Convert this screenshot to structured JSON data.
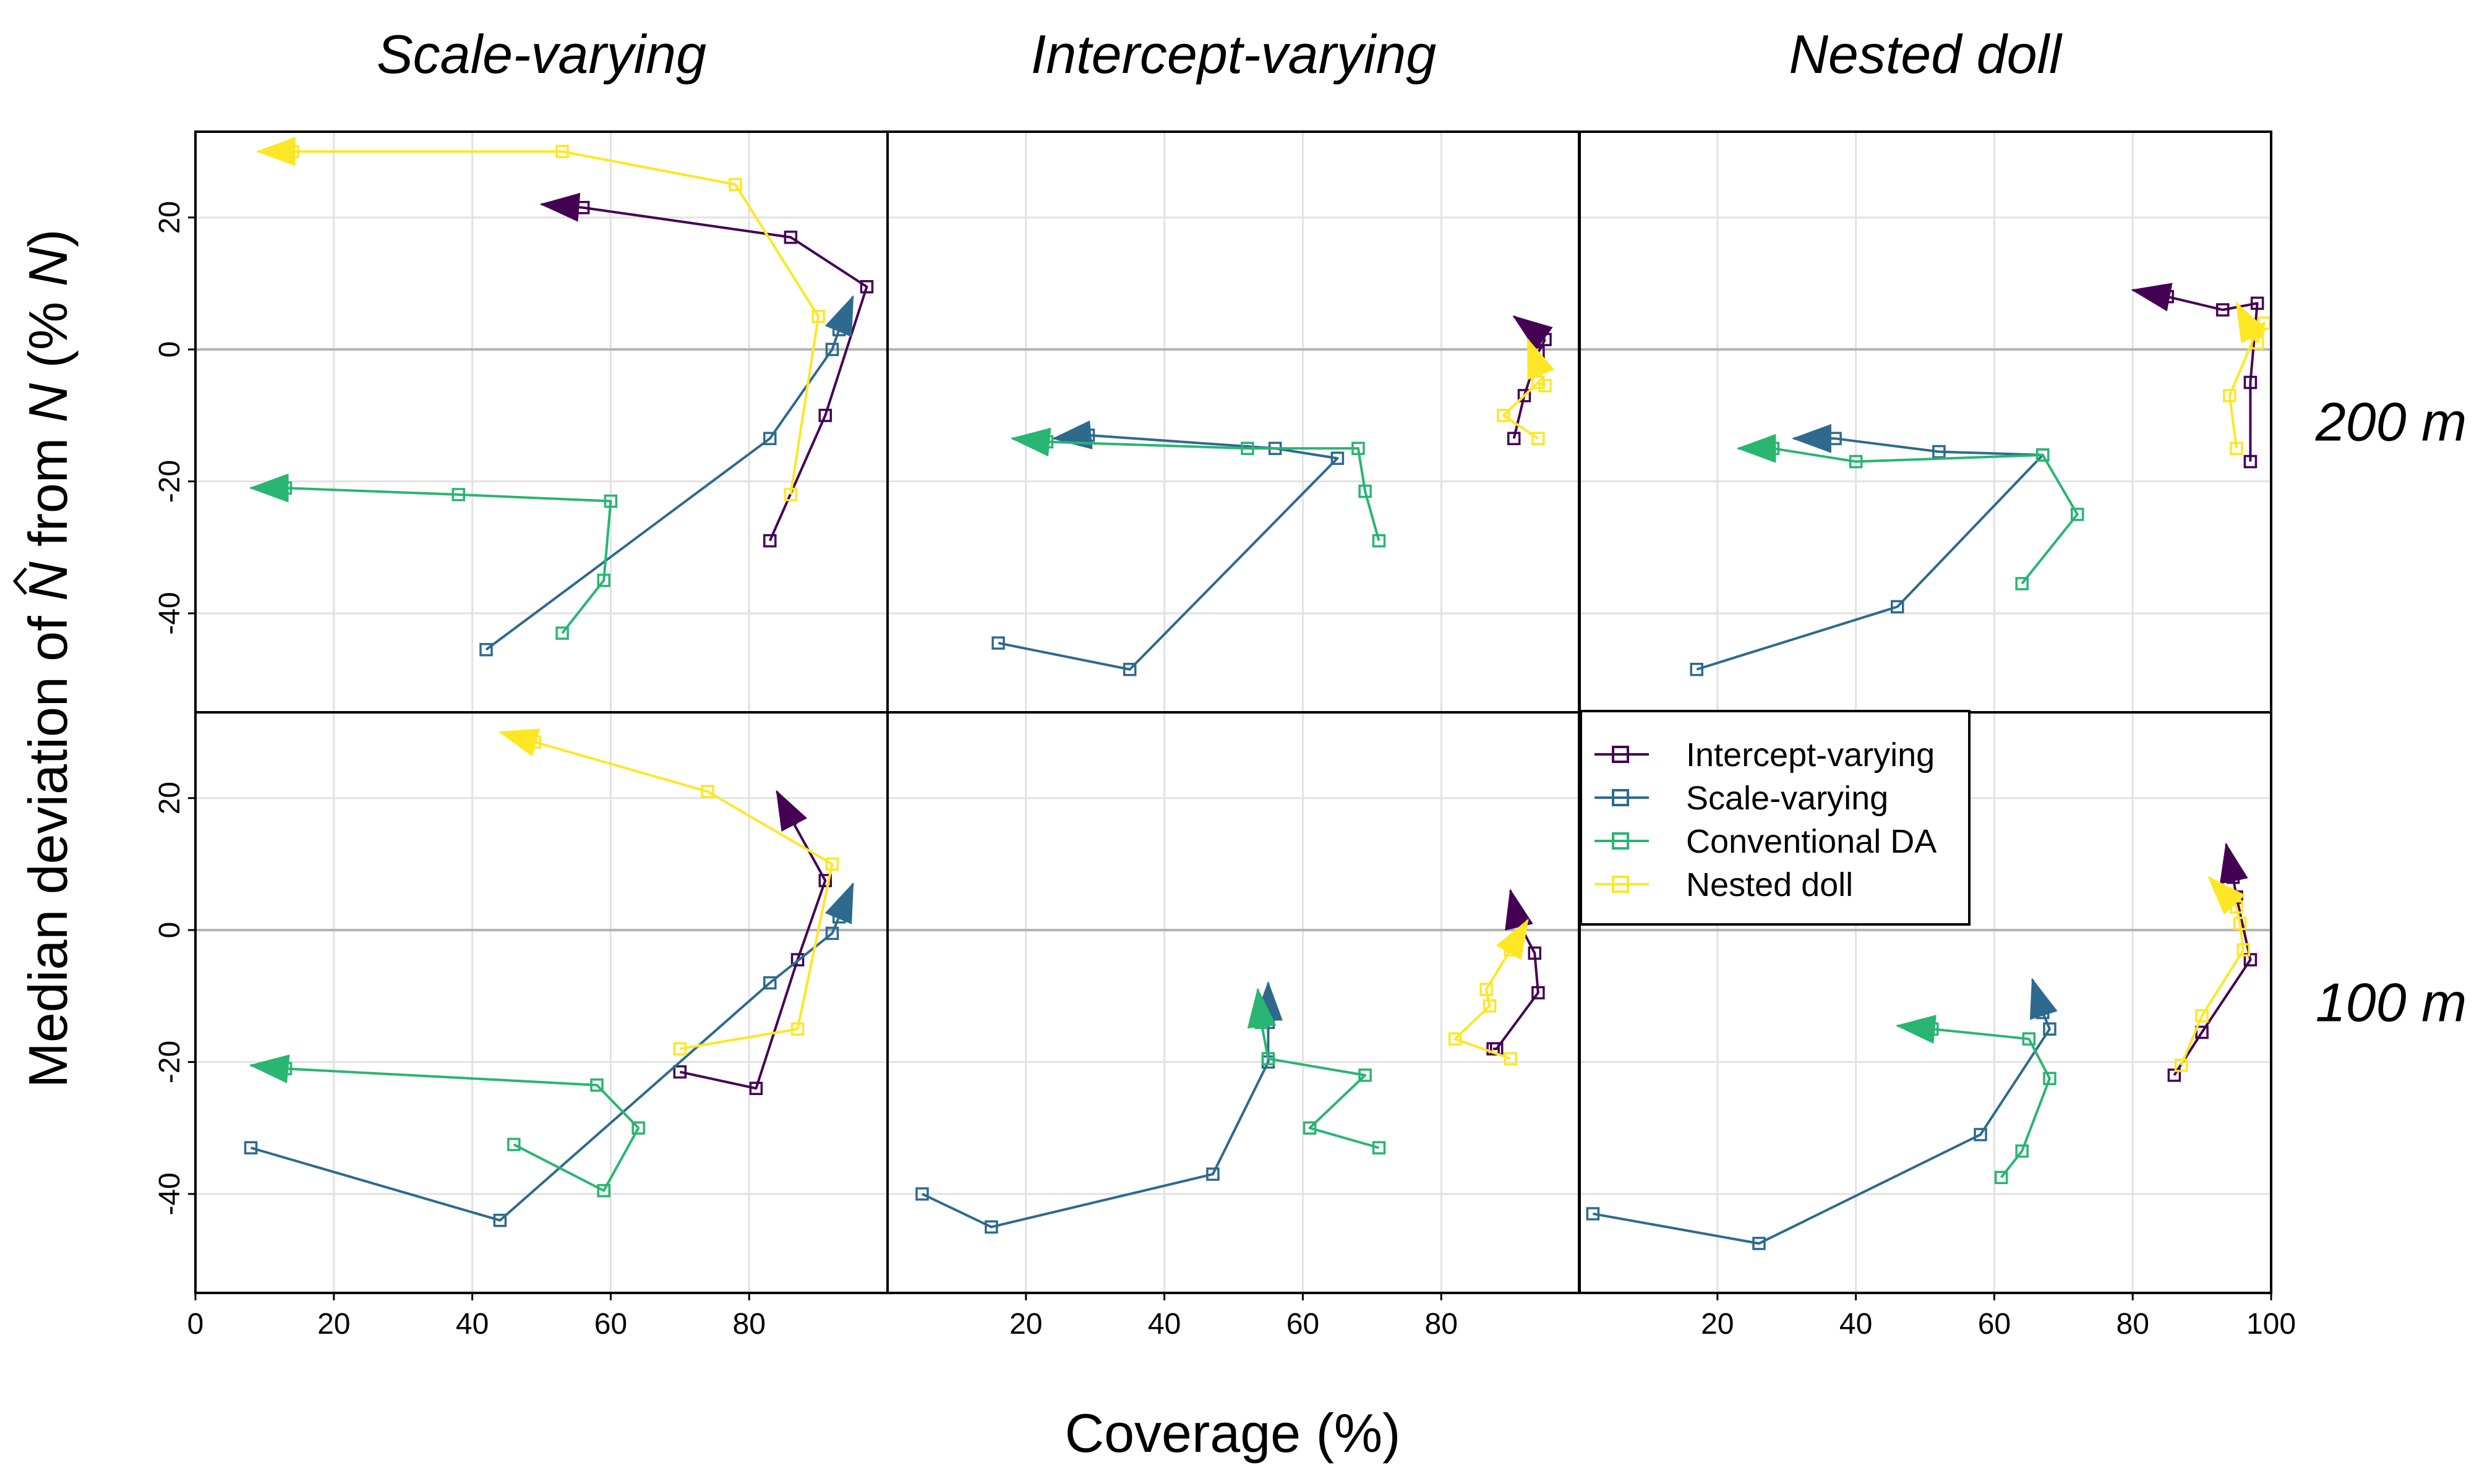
{
  "figure": {
    "xlabel": "Coverage (%)",
    "ylabel_prefix": "Median deviation of ",
    "ylabel_nhat": "N",
    "ylabel_middle": " from ",
    "ylabel_n": "N",
    "ylabel_open": " (% ",
    "ylabel_n2": "N",
    "ylabel_close": ")"
  },
  "colors": {
    "Intercept-varying": "#440154",
    "Scale-varying": "#2d6a8e",
    "Conventional DA": "#29b572",
    "Nested doll": "#fde725"
  },
  "legend": {
    "entries": [
      "Intercept-varying",
      "Scale-varying",
      "Conventional DA",
      "Nested doll"
    ]
  },
  "chart_data": {
    "type": "line",
    "facet_columns": [
      "Scale-varying",
      "Intercept-varying",
      "Nested doll"
    ],
    "facet_rows": [
      "200 m",
      "100 m"
    ],
    "x_axis": {
      "label": "Coverage (%)",
      "lim": [
        0,
        100
      ],
      "ticks": [
        0,
        20,
        40,
        60,
        80,
        100
      ]
    },
    "y_axis": {
      "label": "Median deviation of N̂ from N (% N)",
      "lim": [
        -55,
        33
      ],
      "ticks": [
        -40,
        -20,
        0,
        20
      ]
    },
    "grid": true,
    "reference_line_y": 0,
    "legend_position": "inside bottom-right panel area (top-left of Nested doll, 100 m)",
    "note": "Each series is a path ending with an arrowhead at its final point.",
    "panels": [
      {
        "column": "Scale-varying",
        "row": "200 m",
        "series": [
          {
            "name": "Intercept-varying",
            "x": [
              83,
              91,
              97,
              86,
              56
            ],
            "y": [
              -29,
              -10,
              9.5,
              17,
              21.5
            ],
            "arrow_end": [
              50,
              22
            ]
          },
          {
            "name": "Scale-varying",
            "x": [
              42,
              83,
              92,
              93
            ],
            "y": [
              -45.5,
              -13.5,
              0,
              3
            ],
            "arrow_end": [
              95,
              8
            ]
          },
          {
            "name": "Conventional DA",
            "x": [
              53,
              59,
              60,
              38,
              13
            ],
            "y": [
              -43,
              -35,
              -23,
              -22,
              -21
            ],
            "arrow_end": [
              8,
              -21
            ]
          },
          {
            "name": "Nested doll",
            "x": [
              86,
              90,
              78,
              53,
              14
            ],
            "y": [
              -22,
              5,
              25,
              30,
              30
            ],
            "arrow_end": [
              9,
              30
            ]
          }
        ]
      },
      {
        "column": "Intercept-varying",
        "row": "200 m",
        "series": [
          {
            "name": "Intercept-varying",
            "x": [
              90.5,
              92,
              94,
              95
            ],
            "y": [
              -13.5,
              -7,
              -0.5,
              1.5
            ],
            "arrow_end": [
              90.5,
              5
            ]
          },
          {
            "name": "Scale-varying",
            "x": [
              16,
              35,
              65,
              56,
              29
            ],
            "y": [
              -44.5,
              -48.5,
              -16.5,
              -15,
              -13
            ],
            "arrow_end": [
              24,
              -13.5
            ]
          },
          {
            "name": "Conventional DA",
            "x": [
              71,
              69,
              68,
              52,
              23
            ],
            "y": [
              -29,
              -21.5,
              -15,
              -15,
              -14
            ],
            "arrow_end": [
              18,
              -13.5
            ]
          },
          {
            "name": "Nested doll",
            "x": [
              94,
              89,
              94,
              95
            ],
            "y": [
              -13.5,
              -10,
              -5,
              -5.5
            ],
            "arrow_end": [
              92.5,
              1.5
            ]
          }
        ]
      },
      {
        "column": "Nested doll",
        "row": "200 m",
        "series": [
          {
            "name": "Intercept-varying",
            "x": [
              97,
              97,
              98,
              93,
              85
            ],
            "y": [
              -17,
              -5,
              7,
              6,
              8
            ],
            "arrow_end": [
              80,
              9
            ]
          },
          {
            "name": "Scale-varying",
            "x": [
              17,
              46,
              67,
              52,
              37
            ],
            "y": [
              -48.5,
              -39,
              -16,
              -15.5,
              -13.5
            ],
            "arrow_end": [
              31,
              -13.5
            ]
          },
          {
            "name": "Conventional DA",
            "x": [
              64,
              72,
              67,
              40,
              28
            ],
            "y": [
              -35.5,
              -25,
              -16,
              -17,
              -15
            ],
            "arrow_end": [
              23,
              -15
            ]
          },
          {
            "name": "Nested doll",
            "x": [
              95,
              94,
              98,
              99,
              98
            ],
            "y": [
              -15,
              -7,
              3,
              4,
              1
            ],
            "arrow_end": [
              95,
              7
            ]
          }
        ]
      },
      {
        "column": "Scale-varying",
        "row": "100 m",
        "series": [
          {
            "name": "Intercept-varying",
            "x": [
              70,
              81,
              87,
              91,
              86
            ],
            "y": [
              -21.5,
              -24,
              -4.5,
              7.5,
              17
            ],
            "arrow_end": [
              84,
              21
            ]
          },
          {
            "name": "Scale-varying",
            "x": [
              8,
              44,
              83,
              92,
              93
            ],
            "y": [
              -33,
              -44,
              -8,
              -0.5,
              2
            ],
            "arrow_end": [
              95,
              7
            ]
          },
          {
            "name": "Conventional DA",
            "x": [
              46,
              59,
              64,
              58,
              13
            ],
            "y": [
              -32.5,
              -39.5,
              -30,
              -23.5,
              -21
            ],
            "arrow_end": [
              8,
              -20.5
            ]
          },
          {
            "name": "Nested doll",
            "x": [
              70,
              87,
              92,
              74,
              49
            ],
            "y": [
              -18,
              -15,
              10,
              21,
              28.5
            ],
            "arrow_end": [
              44,
              30
            ]
          }
        ]
      },
      {
        "column": "Intercept-varying",
        "row": "100 m",
        "series": [
          {
            "name": "Intercept-varying",
            "x": [
              87.5,
              88,
              94,
              93.5,
              91
            ],
            "y": [
              -18,
              -18,
              -9.5,
              -3.5,
              1.5
            ],
            "arrow_end": [
              90,
              6
            ]
          },
          {
            "name": "Scale-varying",
            "x": [
              5,
              15,
              47,
              55,
              55
            ],
            "y": [
              -40,
              -45,
              -37,
              -20,
              -14
            ],
            "arrow_end": [
              55,
              -8
            ]
          },
          {
            "name": "Conventional DA",
            "x": [
              71,
              61,
              69,
              55,
              54
            ],
            "y": [
              -33,
              -30,
              -22,
              -19.5,
              -14
            ],
            "arrow_end": [
              53.5,
              -9
            ]
          },
          {
            "name": "Nested doll",
            "x": [
              90,
              82,
              87,
              86.5,
              90
            ],
            "y": [
              -19.5,
              -16.5,
              -11.5,
              -9,
              -3
            ],
            "arrow_end": [
              92.5,
              1.5
            ]
          }
        ]
      },
      {
        "column": "Nested doll",
        "row": "100 m",
        "series": [
          {
            "name": "Intercept-varying",
            "x": [
              86,
              90,
              97,
              95,
              94.5
            ],
            "y": [
              -22,
              -15.5,
              -4.5,
              5,
              8
            ],
            "arrow_end": [
              93.5,
              13
            ]
          },
          {
            "name": "Scale-varying",
            "x": [
              2,
              26,
              58,
              68,
              67
            ],
            "y": [
              -43,
              -47.5,
              -31,
              -15,
              -12.5
            ],
            "arrow_end": [
              65.5,
              -7.5
            ]
          },
          {
            "name": "Conventional DA",
            "x": [
              61,
              64,
              68,
              65,
              51
            ],
            "y": [
              -37.5,
              -33.5,
              -22.5,
              -16.5,
              -15
            ],
            "arrow_end": [
              46,
              -14.5
            ]
          },
          {
            "name": "Nested doll",
            "x": [
              87,
              90,
              96,
              95.5,
              95
            ],
            "y": [
              -20.5,
              -13,
              -3,
              1,
              3.5
            ],
            "arrow_end": [
              91,
              8
            ]
          }
        ]
      }
    ]
  }
}
